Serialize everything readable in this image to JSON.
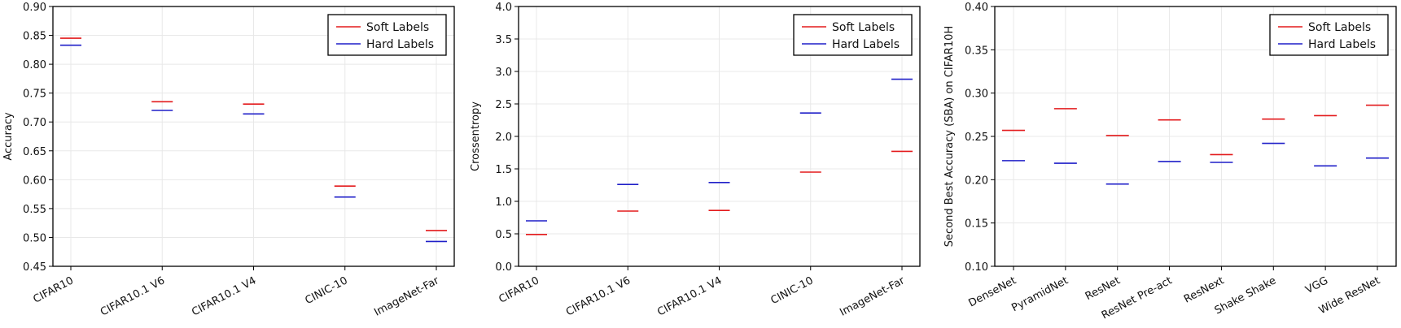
{
  "chart_data": [
    {
      "type": "scatter",
      "marker": "hline",
      "title": "",
      "xlabel": "",
      "ylabel": "Accuracy",
      "ylim": [
        0.45,
        0.9
      ],
      "yticks": [
        "0.45",
        "0.50",
        "0.55",
        "0.60",
        "0.65",
        "0.70",
        "0.75",
        "0.80",
        "0.85",
        "0.90"
      ],
      "categories": [
        "CIFAR10",
        "CIFAR10.1 V6",
        "CIFAR10.1 V4",
        "CINIC-10",
        "ImageNet-Far"
      ],
      "series": [
        {
          "name": "Soft Labels",
          "color": "#e31a1c",
          "values": [
            0.845,
            0.735,
            0.731,
            0.589,
            0.512
          ]
        },
        {
          "name": "Hard Labels",
          "color": "#1f1fc8",
          "values": [
            0.833,
            0.72,
            0.714,
            0.57,
            0.493
          ]
        }
      ],
      "grid": true,
      "legend": "top-right"
    },
    {
      "type": "scatter",
      "marker": "hline",
      "title": "",
      "xlabel": "",
      "ylabel": "Crossentropy",
      "ylim": [
        0.0,
        4.0
      ],
      "yticks": [
        "0.0",
        "0.5",
        "1.0",
        "1.5",
        "2.0",
        "2.5",
        "3.0",
        "3.5",
        "4.0"
      ],
      "categories": [
        "CIFAR10",
        "CIFAR10.1 V6",
        "CIFAR10.1 V4",
        "CINIC-10",
        "ImageNet-Far"
      ],
      "series": [
        {
          "name": "Soft Labels",
          "color": "#e31a1c",
          "values": [
            0.49,
            0.85,
            0.86,
            1.45,
            1.77
          ]
        },
        {
          "name": "Hard Labels",
          "color": "#1f1fc8",
          "values": [
            0.7,
            1.26,
            1.29,
            2.36,
            2.88
          ]
        }
      ],
      "grid": true,
      "legend": "top-right"
    },
    {
      "type": "scatter",
      "marker": "hline",
      "title": "",
      "xlabel": "",
      "ylabel": "Second Best Accuracy (SBA) on CIFAR10H",
      "ylim": [
        0.1,
        0.4
      ],
      "yticks": [
        "0.10",
        "0.15",
        "0.20",
        "0.25",
        "0.30",
        "0.35",
        "0.40"
      ],
      "categories": [
        "DenseNet",
        "PyramidNet",
        "ResNet",
        "ResNet Pre-act",
        "ResNext",
        "Shake Shake",
        "VGG",
        "Wide ResNet"
      ],
      "series": [
        {
          "name": "Soft Labels",
          "color": "#e31a1c",
          "values": [
            0.257,
            0.282,
            0.251,
            0.269,
            0.229,
            0.27,
            0.274,
            0.286
          ]
        },
        {
          "name": "Hard Labels",
          "color": "#1f1fc8",
          "values": [
            0.222,
            0.219,
            0.195,
            0.221,
            0.22,
            0.242,
            0.216,
            0.225
          ]
        }
      ],
      "grid": true,
      "legend": "top-right"
    }
  ]
}
